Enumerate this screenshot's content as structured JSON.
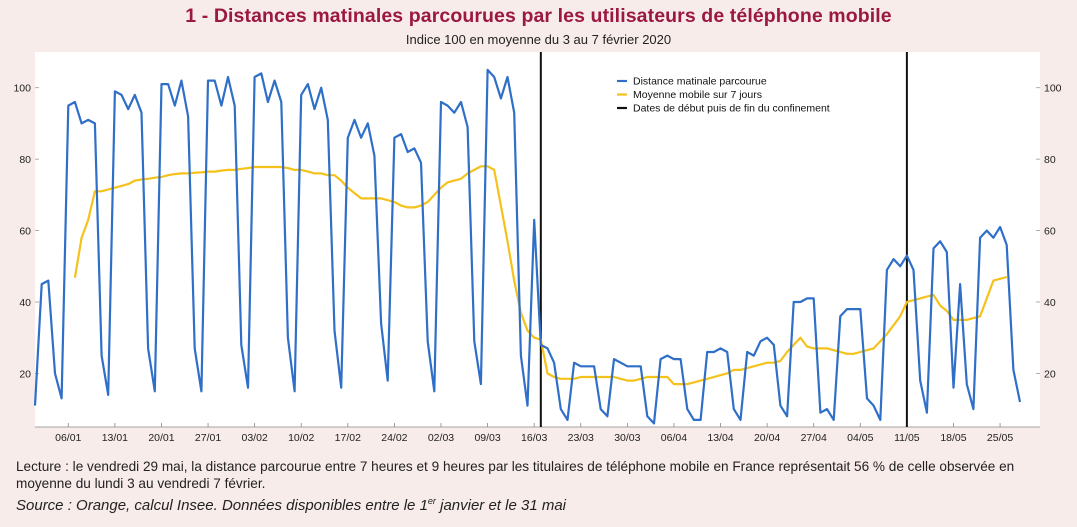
{
  "header": {
    "title": "1 - Distances matinales parcourues par les utilisateurs de téléphone mobile",
    "subtitle": "Indice 100 en moyenne du 3 au 7 février 2020"
  },
  "footer": {
    "note": "Lecture : le vendredi 29 mai, la distance parcourue entre 7 heures et 9 heures par les titulaires de téléphone mobile en France représentait 56 % de celle observée en moyenne du lundi 3 au vendredi 7 février.",
    "source_before": "Source : Orange, calcul Insee. Données disponibles entre le 1",
    "source_sup": "er",
    "source_after": " janvier et le 31 mai"
  },
  "colors": {
    "background": "#f8ecea",
    "plot_background": "#ffffff",
    "title": "#9b1842",
    "distance": "#2f6fc8",
    "moving_average": "#f5c11b",
    "confinement_lines": "#111111"
  },
  "chart_data": {
    "type": "line",
    "title": "1 - Distances matinales parcourues par les utilisateurs de téléphone mobile",
    "subtitle": "Indice 100 en moyenne du 3 au 7 février 2020",
    "x_start": "01/01",
    "x_end": "31/05",
    "xticks": [
      "06/01",
      "13/01",
      "20/01",
      "27/01",
      "03/02",
      "10/02",
      "17/02",
      "24/02",
      "02/03",
      "09/03",
      "16/03",
      "23/03",
      "30/03",
      "06/04",
      "13/04",
      "20/04",
      "27/04",
      "04/05",
      "11/05",
      "18/05",
      "25/05"
    ],
    "yticks": [
      20,
      40,
      60,
      80,
      100
    ],
    "ylim": [
      5,
      110
    ],
    "grid": false,
    "legend_position": "top-center",
    "series": [
      {
        "name": "Distance matinale parcourue",
        "values": [
          11,
          45,
          46,
          20,
          13,
          95,
          96,
          90,
          91,
          90,
          25,
          14,
          99,
          98,
          94,
          98,
          93,
          27,
          15,
          101,
          101,
          95,
          102,
          92,
          27,
          15,
          102,
          102,
          95,
          103,
          95,
          28,
          16,
          103,
          104,
          96,
          102,
          96,
          30,
          15,
          98,
          101,
          94,
          100,
          91,
          32,
          16,
          86,
          91,
          86,
          90,
          81,
          34,
          18,
          86,
          87,
          82,
          83,
          79,
          29,
          15,
          96,
          95,
          93,
          96,
          89,
          29,
          17,
          105,
          103,
          97,
          103,
          93,
          25,
          11,
          63,
          28,
          27,
          23,
          10,
          7,
          23,
          22,
          22,
          22,
          10,
          8,
          24,
          23,
          22,
          22,
          22,
          8,
          6,
          24,
          25,
          24,
          24,
          10,
          7,
          7,
          26,
          26,
          27,
          26,
          10,
          7,
          26,
          25,
          29,
          30,
          28,
          11,
          8,
          40,
          40,
          41,
          41,
          9,
          10,
          7,
          36,
          38,
          38,
          38,
          13,
          11,
          7,
          49,
          52,
          50,
          53,
          49,
          18,
          9,
          55,
          57,
          54,
          16,
          45,
          17,
          10,
          58,
          60,
          58,
          61,
          56,
          21,
          12
        ],
        "color": "#2f6fc8"
      },
      {
        "name": "Moyenne mobile sur 7 jours",
        "start_index": 6,
        "values": [
          46.8,
          58,
          63,
          71,
          71,
          71.5,
          72,
          72.5,
          73,
          74,
          74.3,
          74.5,
          74.8,
          75,
          75.5,
          75.8,
          76,
          76,
          76.2,
          76.3,
          76.5,
          76.5,
          76.8,
          77,
          77,
          77.3,
          77.5,
          77.8,
          77.8,
          77.8,
          77.8,
          77.8,
          77.5,
          77,
          77,
          76.5,
          76,
          76,
          75.5,
          75.5,
          74,
          72,
          70.5,
          69,
          69,
          69,
          69,
          68.5,
          68,
          67,
          66.5,
          66.5,
          67,
          68,
          70,
          72,
          73.5,
          74,
          74.5,
          76,
          77,
          78,
          78,
          77,
          67,
          57,
          46,
          37,
          32,
          30,
          29.5,
          20,
          19,
          18.5,
          18.5,
          18.5,
          19,
          19,
          19,
          19,
          19,
          19,
          18.5,
          18,
          18,
          18.5,
          19,
          19,
          19,
          19,
          17,
          17,
          17,
          17.5,
          18,
          18.5,
          19,
          19.5,
          20,
          21,
          21,
          21.5,
          22,
          22.5,
          23,
          23,
          23.5,
          26,
          28,
          30,
          27.5,
          27,
          27,
          27,
          26.5,
          26,
          25.5,
          25.5,
          26,
          26.5,
          27,
          29,
          31,
          33.5,
          36,
          40,
          40.5,
          41,
          41.5,
          42,
          39,
          37.5,
          35,
          35,
          35,
          35.5,
          36,
          41,
          46,
          46.5,
          47
        ],
        "color": "#f5c11b"
      }
    ],
    "vertical_markers": [
      {
        "name": "Dates de début puis de fin du confinement",
        "x": [
          "17/03",
          "11/05"
        ],
        "color": "#111111"
      }
    ]
  }
}
